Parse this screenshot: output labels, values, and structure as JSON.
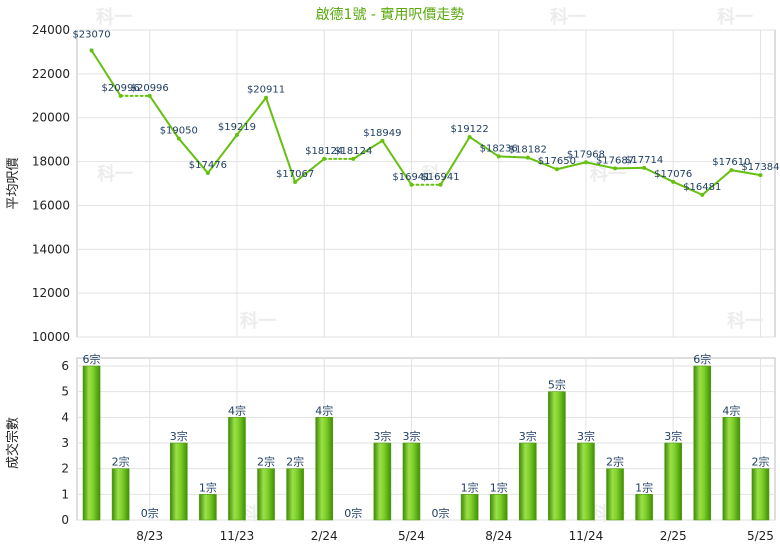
{
  "chart_data": [
    {
      "type": "line",
      "title": "啟德1號 - 實用呎價走勢",
      "ylabel": "平均呎價",
      "ylim": [
        10000,
        24000
      ],
      "y_ticks": [
        10000,
        12000,
        14000,
        16000,
        18000,
        20000,
        22000,
        24000
      ],
      "grid": true,
      "line_color": "#66c010",
      "series": [
        {
          "values": [
            23070,
            20996,
            20996,
            19050,
            17476,
            19219,
            20911,
            17067,
            18124,
            18124,
            18949,
            16941,
            16941,
            19122,
            18236,
            18182,
            17650,
            17968,
            17687,
            17714,
            17076,
            16481,
            17610,
            17384
          ],
          "labels": [
            "$23070",
            "$20996",
            "$20996",
            "$19050",
            "$17476",
            "$19219",
            "$20911",
            "$17067",
            "$18124",
            "$18124",
            "$18949",
            "$16941",
            "$16941",
            "$19122",
            "$18236",
            "$18182",
            "$17650",
            "$17968",
            "$17687",
            "$17714",
            "$17076",
            "$16481",
            "$17610",
            "$17384"
          ]
        }
      ],
      "dotted_segments": [
        [
          1,
          2
        ],
        [
          8,
          9
        ],
        [
          11,
          12
        ]
      ]
    },
    {
      "type": "bar",
      "ylabel": "成交宗數",
      "ylim": [
        0,
        6
      ],
      "y_ticks": [
        0,
        1,
        2,
        3,
        4,
        5,
        6
      ],
      "categories": [
        "",
        "",
        "8/23",
        "",
        "",
        "11/23",
        "",
        "",
        "2/24",
        "",
        "",
        "5/24",
        "",
        "",
        "8/24",
        "",
        "",
        "11/24",
        "",
        "",
        "2/25",
        "",
        "",
        "5/25"
      ],
      "values": [
        6,
        2,
        0,
        3,
        1,
        4,
        2,
        2,
        4,
        0,
        3,
        3,
        0,
        1,
        1,
        3,
        5,
        3,
        2,
        1,
        3,
        6,
        4,
        2
      ],
      "labels": [
        "6宗",
        "2宗",
        "0宗",
        "3宗",
        "1宗",
        "4宗",
        "2宗",
        "2宗",
        "4宗",
        "0宗",
        "3宗",
        "3宗",
        "0宗",
        "1宗",
        "1宗",
        "3宗",
        "5宗",
        "3宗",
        "2宗",
        "1宗",
        "3宗",
        "6宗",
        "4宗",
        "2宗"
      ],
      "bar_color": "#6cc21a",
      "grid": true
    }
  ],
  "watermark": "科一"
}
